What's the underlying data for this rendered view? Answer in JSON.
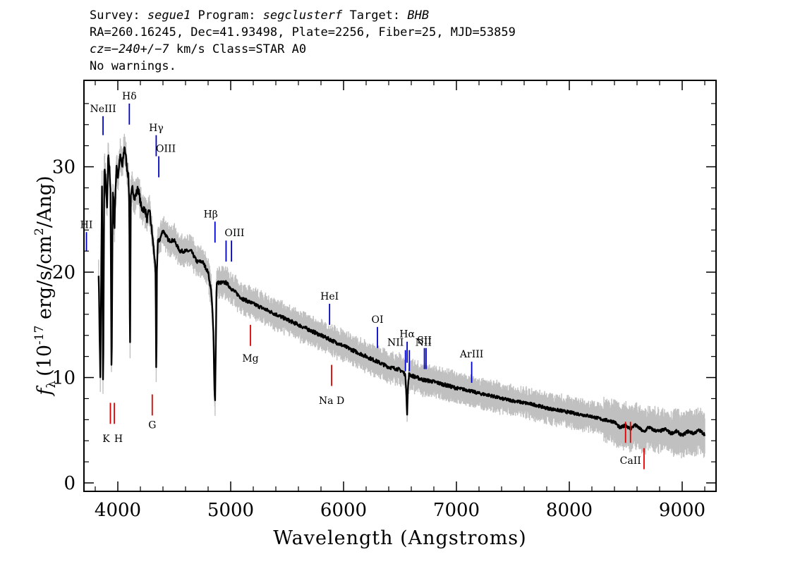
{
  "header": {
    "survey_label": "Survey: ",
    "survey": "segue1",
    "program_label": " Program: ",
    "program": "segclusterf",
    "target_label": " Target: ",
    "target": "BHB",
    "line2": "RA=260.16245, Dec=41.93498, Plate=2256, Fiber=25, MJD=53859",
    "cz": "cz=−240+/−7",
    "line3_rest": " km/s Class=STAR A0",
    "line4": "No warnings."
  },
  "chart_data": {
    "type": "line",
    "title": "",
    "xlabel": "Wavelength (Angstroms)",
    "ylabel_prefix": "f",
    "ylabel_sub": "λ",
    "ylabel_mid": "(10",
    "ylabel_exp": "-17",
    "ylabel_rest": " erg/s/cm",
    "ylabel_sq": "2",
    "ylabel_end": "/Ang)",
    "xlim": [
      3700,
      9300
    ],
    "ylim": [
      -0.8,
      38.2
    ],
    "xticks": [
      4000,
      5000,
      6000,
      7000,
      8000,
      9000
    ],
    "yticks": [
      0,
      10,
      20,
      30
    ],
    "colors": {
      "flux": "#000000",
      "error": "#c0c0c0",
      "emission": "#0000cc",
      "absorption": "#dd0000"
    },
    "series": [
      {
        "role": "smoothed flux",
        "x": [
          3830,
          3845,
          3860,
          3870,
          3880,
          3890,
          3895,
          3905,
          3915,
          3925,
          3935,
          3945,
          3955,
          3962,
          3970,
          3980,
          3990,
          4000,
          4020,
          4040,
          4060,
          4080,
          4095,
          4102,
          4108,
          4115,
          4130,
          4150,
          4180,
          4210,
          4240,
          4260,
          4280,
          4300,
          4320,
          4335,
          4341,
          4346,
          4355,
          4370,
          4400,
          4450,
          4500,
          4550,
          4600,
          4650,
          4700,
          4750,
          4800,
          4830,
          4848,
          4855,
          4862,
          4868,
          4875,
          4890,
          4920,
          4960,
          5000,
          5100,
          5200,
          5300,
          5400,
          5500,
          5600,
          5700,
          5800,
          5900,
          6000,
          6100,
          6200,
          6300,
          6400,
          6480,
          6520,
          6545,
          6555,
          6563,
          6570,
          6580,
          6600,
          6650,
          6700,
          6800,
          6900,
          7000,
          7100,
          7200,
          7300,
          7400,
          7500,
          7600,
          7700,
          7800,
          7900,
          8000,
          8100,
          8200,
          8300,
          8400,
          8450,
          8500,
          8540,
          8580,
          8620,
          8662,
          8700,
          8750,
          8800,
          8850,
          8900,
          8950,
          9000,
          9050,
          9100,
          9150,
          9200
        ],
        "y": [
          20,
          10,
          28,
          8,
          30,
          29,
          28,
          26,
          31,
          30,
          28,
          9,
          28,
          27,
          24,
          28,
          30,
          29,
          31,
          30,
          32,
          30,
          29,
          26,
          11,
          27,
          28,
          27,
          28,
          26,
          26,
          25,
          26,
          24,
          22,
          20,
          9,
          20,
          23,
          23,
          24,
          23,
          23,
          22,
          22,
          22,
          21,
          21,
          20,
          18,
          14,
          9,
          8,
          13,
          19,
          19,
          19,
          19,
          18.5,
          17.5,
          17,
          16.5,
          16,
          15.5,
          15,
          14.5,
          14,
          13.5,
          13,
          12.5,
          12,
          11.5,
          11,
          10.8,
          10.6,
          10.3,
          9,
          6.5,
          9,
          10.3,
          10.2,
          10,
          9.8,
          9.6,
          9.3,
          9.0,
          8.8,
          8.5,
          8.3,
          8.0,
          7.8,
          7.6,
          7.4,
          7.1,
          6.9,
          6.7,
          6.5,
          6.3,
          6.0,
          5.8,
          5.2,
          5.5,
          5.1,
          5.5,
          5.2,
          4.8,
          5.3,
          5.0,
          4.9,
          5.1,
          4.7,
          4.9,
          4.5,
          4.9,
          4.7,
          5.0,
          4.6
        ]
      }
    ],
    "line_labels": [
      {
        "name": "HI",
        "wave": 3722,
        "kind": "emission",
        "y1": 22,
        "y2": 23.8,
        "labelY": 24.2,
        "labelDx": 0
      },
      {
        "name": "NeIII",
        "wave": 3869,
        "kind": "emission",
        "y1": 33,
        "y2": 34.8,
        "labelY": 35.2,
        "labelDx": 0
      },
      {
        "name": "Hδ",
        "wave": 4102,
        "kind": "emission",
        "y1": 34,
        "y2": 36,
        "labelY": 36.4,
        "labelDx": 0
      },
      {
        "name": "Hγ",
        "wave": 4340,
        "kind": "emission",
        "y1": 31,
        "y2": 33,
        "labelY": 33.4,
        "labelDx": 0
      },
      {
        "name": "OIII",
        "wave": 4363,
        "kind": "emission",
        "y1": 29,
        "y2": 31,
        "labelY": 31.4,
        "labelDx": 10
      },
      {
        "name": "Hβ",
        "wave": 4861,
        "kind": "emission",
        "y1": 22.8,
        "y2": 24.8,
        "labelY": 25.2,
        "labelDx": -6
      },
      {
        "name": "OIII",
        "wave": 4959,
        "kind": "emission",
        "y1": 21,
        "y2": 23,
        "labelY": 23.4,
        "labelDx": 12
      },
      {
        "name": "OIII",
        "wave": 5007,
        "kind": "emission",
        "y1": 21,
        "y2": 23,
        "labelY": 23.4,
        "labelDx": -500
      },
      {
        "name": "HeI",
        "wave": 5876,
        "kind": "emission",
        "y1": 15,
        "y2": 17,
        "labelY": 17.4,
        "labelDx": 0
      },
      {
        "name": "OI",
        "wave": 6300,
        "kind": "emission",
        "y1": 12.8,
        "y2": 14.8,
        "labelY": 15.2,
        "labelDx": 0
      },
      {
        "name": "NII",
        "wave": 6548,
        "kind": "emission",
        "y1": 10.6,
        "y2": 12.6,
        "labelY": 13,
        "labelDx": -14
      },
      {
        "name": "Hα",
        "wave": 6563,
        "kind": "emission",
        "y1": 11.4,
        "y2": 13.4,
        "labelY": 13.8,
        "labelDx": 0
      },
      {
        "name": "NII",
        "wave": 6583,
        "kind": "emission",
        "y1": 10.6,
        "y2": 12.6,
        "labelY": 13,
        "labelDx": 20
      },
      {
        "name": "SII",
        "wave": 6716,
        "kind": "emission",
        "y1": 10.8,
        "y2": 12.8,
        "labelY": 13.2,
        "labelDx": 0
      },
      {
        "name": "SII",
        "wave": 6731,
        "kind": "emission",
        "y1": 10.8,
        "y2": 12.8,
        "labelY": 13.2,
        "labelDx": -500
      },
      {
        "name": "ArIII",
        "wave": 7135,
        "kind": "emission",
        "y1": 9.5,
        "y2": 11.5,
        "labelY": 11.9,
        "labelDx": 0
      },
      {
        "name": "K",
        "wave": 3934,
        "kind": "absorption",
        "y1": 5.6,
        "y2": 7.6,
        "labelY": 4.3,
        "labelDx": -6
      },
      {
        "name": "H",
        "wave": 3969,
        "kind": "absorption",
        "y1": 5.6,
        "y2": 7.6,
        "labelY": 4.3,
        "labelDx": 6
      },
      {
        "name": "G",
        "wave": 4305,
        "kind": "absorption",
        "y1": 6.4,
        "y2": 8.4,
        "labelY": 5.6,
        "labelDx": 0
      },
      {
        "name": "Mg",
        "wave": 5175,
        "kind": "absorption",
        "y1": 13,
        "y2": 15,
        "labelY": 11.9,
        "labelDx": 0
      },
      {
        "name": "Na D",
        "wave": 5894,
        "kind": "absorption",
        "y1": 9.2,
        "y2": 11.2,
        "labelY": 7.9,
        "labelDx": 0
      },
      {
        "name": "CaII",
        "wave": 8498,
        "kind": "absorption",
        "y1": 3.8,
        "y2": 5.8,
        "labelY": 2.2,
        "labelDx": -500
      },
      {
        "name": "CaII",
        "wave": 8542,
        "kind": "absorption",
        "y1": 3.8,
        "y2": 5.8,
        "labelY": 2.2,
        "labelDx": 0
      },
      {
        "name": "CaII",
        "wave": 8662,
        "kind": "absorption",
        "y1": 1.3,
        "y2": 3.3,
        "labelY": 0.2,
        "labelDx": -500
      }
    ]
  }
}
